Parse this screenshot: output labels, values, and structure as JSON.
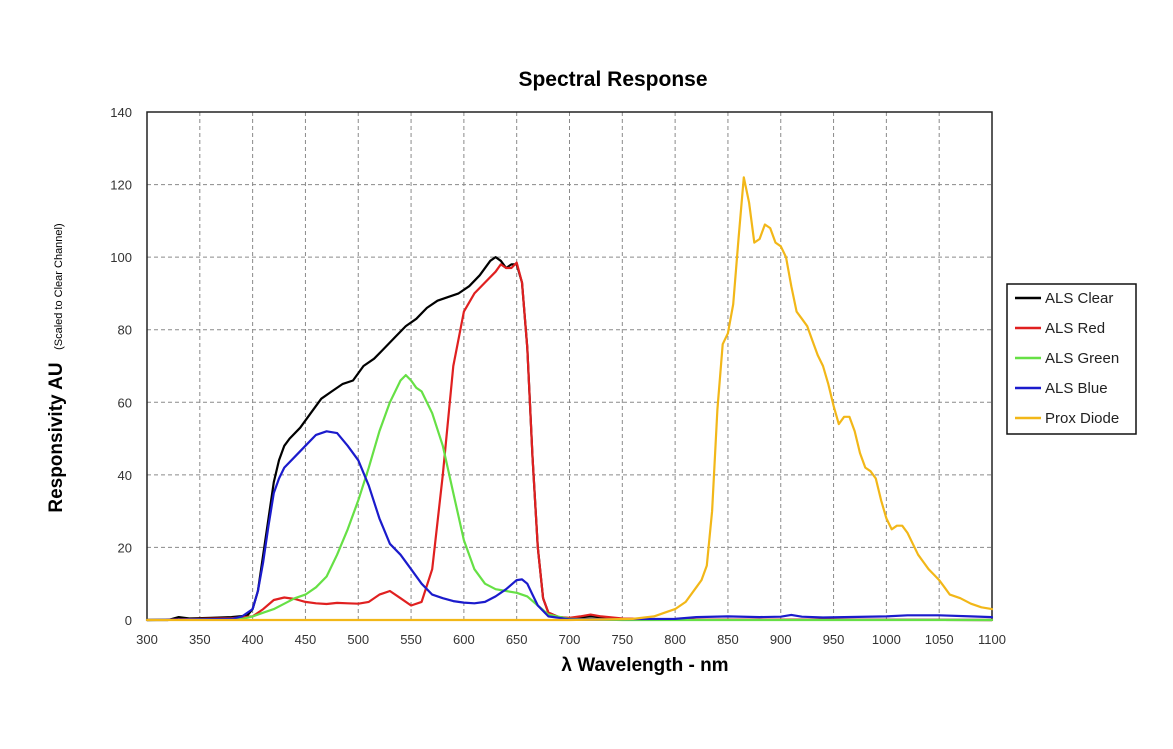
{
  "chart_data": {
    "type": "line",
    "title": "Spectral Response",
    "xlabel": "λ Wavelength  - nm",
    "ylabel": "Responsivity AU",
    "ylabel_note": "(Scaled to Clear Channel)",
    "xlim": [
      300,
      1100
    ],
    "ylim": [
      0,
      140
    ],
    "xticks": [
      "300",
      "350",
      "400",
      "450",
      "500",
      "550",
      "600",
      "650",
      "700",
      "750",
      "800",
      "850",
      "900",
      "950",
      "1000",
      "1050",
      "1100"
    ],
    "yticks": [
      "0",
      "20",
      "40",
      "60",
      "80",
      "100",
      "120",
      "140"
    ],
    "grid": true,
    "legend_position": "right",
    "series": [
      {
        "name": "ALS Clear",
        "color": "#000000",
        "points": [
          [
            300,
            0
          ],
          [
            320,
            0
          ],
          [
            330,
            0.8
          ],
          [
            340,
            0.4
          ],
          [
            360,
            0.6
          ],
          [
            380,
            0.8
          ],
          [
            395,
            1.2
          ],
          [
            400,
            3
          ],
          [
            405,
            8
          ],
          [
            410,
            18
          ],
          [
            415,
            28
          ],
          [
            420,
            38
          ],
          [
            425,
            44
          ],
          [
            430,
            48
          ],
          [
            435,
            50
          ],
          [
            445,
            53
          ],
          [
            455,
            57
          ],
          [
            465,
            61
          ],
          [
            475,
            63
          ],
          [
            485,
            65
          ],
          [
            495,
            66
          ],
          [
            505,
            70
          ],
          [
            515,
            72
          ],
          [
            525,
            75
          ],
          [
            535,
            78
          ],
          [
            545,
            81
          ],
          [
            555,
            83
          ],
          [
            565,
            86
          ],
          [
            575,
            88
          ],
          [
            585,
            89
          ],
          [
            595,
            90
          ],
          [
            605,
            92
          ],
          [
            615,
            95
          ],
          [
            625,
            99
          ],
          [
            630,
            100
          ],
          [
            635,
            99
          ],
          [
            640,
            97
          ],
          [
            645,
            98
          ],
          [
            650,
            98
          ],
          [
            655,
            93
          ],
          [
            660,
            75
          ],
          [
            665,
            45
          ],
          [
            670,
            20
          ],
          [
            675,
            6
          ],
          [
            680,
            2
          ],
          [
            690,
            0.8
          ],
          [
            700,
            0.5
          ],
          [
            720,
            1
          ],
          [
            750,
            0.3
          ],
          [
            800,
            0.1
          ],
          [
            900,
            0.1
          ],
          [
            1100,
            0
          ]
        ]
      },
      {
        "name": "ALS Red",
        "color": "#e02020",
        "points": [
          [
            300,
            0
          ],
          [
            380,
            0.5
          ],
          [
            400,
            1
          ],
          [
            410,
            3
          ],
          [
            420,
            5.5
          ],
          [
            430,
            6.2
          ],
          [
            440,
            5.8
          ],
          [
            450,
            5
          ],
          [
            460,
            4.6
          ],
          [
            470,
            4.4
          ],
          [
            480,
            4.7
          ],
          [
            490,
            4.6
          ],
          [
            500,
            4.5
          ],
          [
            510,
            5
          ],
          [
            520,
            7
          ],
          [
            530,
            8
          ],
          [
            540,
            6
          ],
          [
            550,
            4
          ],
          [
            560,
            5
          ],
          [
            570,
            14
          ],
          [
            580,
            40
          ],
          [
            590,
            70
          ],
          [
            600,
            85
          ],
          [
            610,
            90
          ],
          [
            620,
            93
          ],
          [
            630,
            96
          ],
          [
            635,
            98
          ],
          [
            640,
            97
          ],
          [
            645,
            97
          ],
          [
            650,
            98.5
          ],
          [
            655,
            93
          ],
          [
            660,
            75
          ],
          [
            665,
            45
          ],
          [
            670,
            20
          ],
          [
            675,
            6
          ],
          [
            680,
            2
          ],
          [
            690,
            0.8
          ],
          [
            700,
            0.6
          ],
          [
            710,
            1
          ],
          [
            720,
            1.5
          ],
          [
            730,
            1
          ],
          [
            750,
            0.4
          ],
          [
            800,
            0.1
          ],
          [
            900,
            0.1
          ],
          [
            1100,
            0
          ]
        ]
      },
      {
        "name": "ALS Green",
        "color": "#66e045",
        "points": [
          [
            300,
            0
          ],
          [
            390,
            0.3
          ],
          [
            400,
            1
          ],
          [
            410,
            2
          ],
          [
            420,
            3
          ],
          [
            430,
            4.5
          ],
          [
            440,
            6
          ],
          [
            450,
            7
          ],
          [
            460,
            9
          ],
          [
            470,
            12
          ],
          [
            480,
            18
          ],
          [
            490,
            25
          ],
          [
            500,
            33
          ],
          [
            510,
            42
          ],
          [
            520,
            52
          ],
          [
            530,
            60
          ],
          [
            540,
            66
          ],
          [
            545,
            67.5
          ],
          [
            550,
            66
          ],
          [
            555,
            64
          ],
          [
            560,
            63
          ],
          [
            570,
            57
          ],
          [
            580,
            48
          ],
          [
            590,
            35
          ],
          [
            600,
            22
          ],
          [
            610,
            14
          ],
          [
            620,
            10
          ],
          [
            630,
            8.5
          ],
          [
            640,
            8
          ],
          [
            650,
            7.5
          ],
          [
            660,
            6.5
          ],
          [
            670,
            4
          ],
          [
            680,
            1.5
          ],
          [
            700,
            0.3
          ],
          [
            750,
            0
          ],
          [
            1100,
            0
          ]
        ]
      },
      {
        "name": "ALS Blue",
        "color": "#1b1bcc",
        "points": [
          [
            300,
            0
          ],
          [
            380,
            0.3
          ],
          [
            390,
            1
          ],
          [
            400,
            3
          ],
          [
            405,
            8
          ],
          [
            410,
            16
          ],
          [
            415,
            26
          ],
          [
            420,
            35
          ],
          [
            425,
            39
          ],
          [
            430,
            42
          ],
          [
            440,
            45
          ],
          [
            450,
            48
          ],
          [
            460,
            51
          ],
          [
            470,
            52
          ],
          [
            480,
            51.5
          ],
          [
            490,
            48
          ],
          [
            500,
            44
          ],
          [
            510,
            37
          ],
          [
            520,
            28
          ],
          [
            530,
            21
          ],
          [
            540,
            18
          ],
          [
            550,
            14
          ],
          [
            560,
            10
          ],
          [
            570,
            7
          ],
          [
            580,
            6
          ],
          [
            590,
            5.2
          ],
          [
            600,
            4.8
          ],
          [
            610,
            4.6
          ],
          [
            620,
            5
          ],
          [
            630,
            6.5
          ],
          [
            640,
            8.5
          ],
          [
            650,
            11
          ],
          [
            655,
            11.2
          ],
          [
            660,
            10
          ],
          [
            665,
            7
          ],
          [
            670,
            4
          ],
          [
            680,
            1
          ],
          [
            700,
            0.2
          ],
          [
            800,
            0.3
          ],
          [
            820,
            0.8
          ],
          [
            850,
            1
          ],
          [
            880,
            0.8
          ],
          [
            900,
            0.9
          ],
          [
            910,
            1.4
          ],
          [
            920,
            0.9
          ],
          [
            940,
            0.7
          ],
          [
            960,
            0.8
          ],
          [
            1000,
            1
          ],
          [
            1020,
            1.3
          ],
          [
            1050,
            1.3
          ],
          [
            1080,
            1
          ],
          [
            1100,
            0.8
          ]
        ]
      },
      {
        "name": "Prox Diode",
        "color": "#f2b718",
        "points": [
          [
            300,
            0
          ],
          [
            700,
            0
          ],
          [
            760,
            0.3
          ],
          [
            780,
            1
          ],
          [
            790,
            2
          ],
          [
            800,
            3
          ],
          [
            810,
            5
          ],
          [
            820,
            9
          ],
          [
            825,
            11
          ],
          [
            830,
            15
          ],
          [
            835,
            30
          ],
          [
            840,
            58
          ],
          [
            845,
            76
          ],
          [
            850,
            79
          ],
          [
            855,
            87
          ],
          [
            860,
            105
          ],
          [
            865,
            122
          ],
          [
            870,
            115
          ],
          [
            875,
            104
          ],
          [
            880,
            105
          ],
          [
            885,
            109
          ],
          [
            890,
            108
          ],
          [
            895,
            104
          ],
          [
            900,
            103
          ],
          [
            905,
            100
          ],
          [
            910,
            92
          ],
          [
            915,
            85
          ],
          [
            920,
            83
          ],
          [
            925,
            81
          ],
          [
            930,
            77
          ],
          [
            935,
            73
          ],
          [
            940,
            70
          ],
          [
            945,
            65
          ],
          [
            950,
            59
          ],
          [
            955,
            54
          ],
          [
            960,
            56
          ],
          [
            965,
            56
          ],
          [
            970,
            52
          ],
          [
            975,
            46
          ],
          [
            980,
            42
          ],
          [
            985,
            41
          ],
          [
            990,
            39
          ],
          [
            995,
            33
          ],
          [
            1000,
            28
          ],
          [
            1005,
            25
          ],
          [
            1010,
            26
          ],
          [
            1015,
            26
          ],
          [
            1020,
            24
          ],
          [
            1025,
            21
          ],
          [
            1030,
            18
          ],
          [
            1035,
            16
          ],
          [
            1040,
            14
          ],
          [
            1045,
            12.5
          ],
          [
            1050,
            11
          ],
          [
            1055,
            9
          ],
          [
            1060,
            7
          ],
          [
            1070,
            6
          ],
          [
            1080,
            4.5
          ],
          [
            1090,
            3.5
          ],
          [
            1100,
            3
          ]
        ]
      }
    ]
  }
}
